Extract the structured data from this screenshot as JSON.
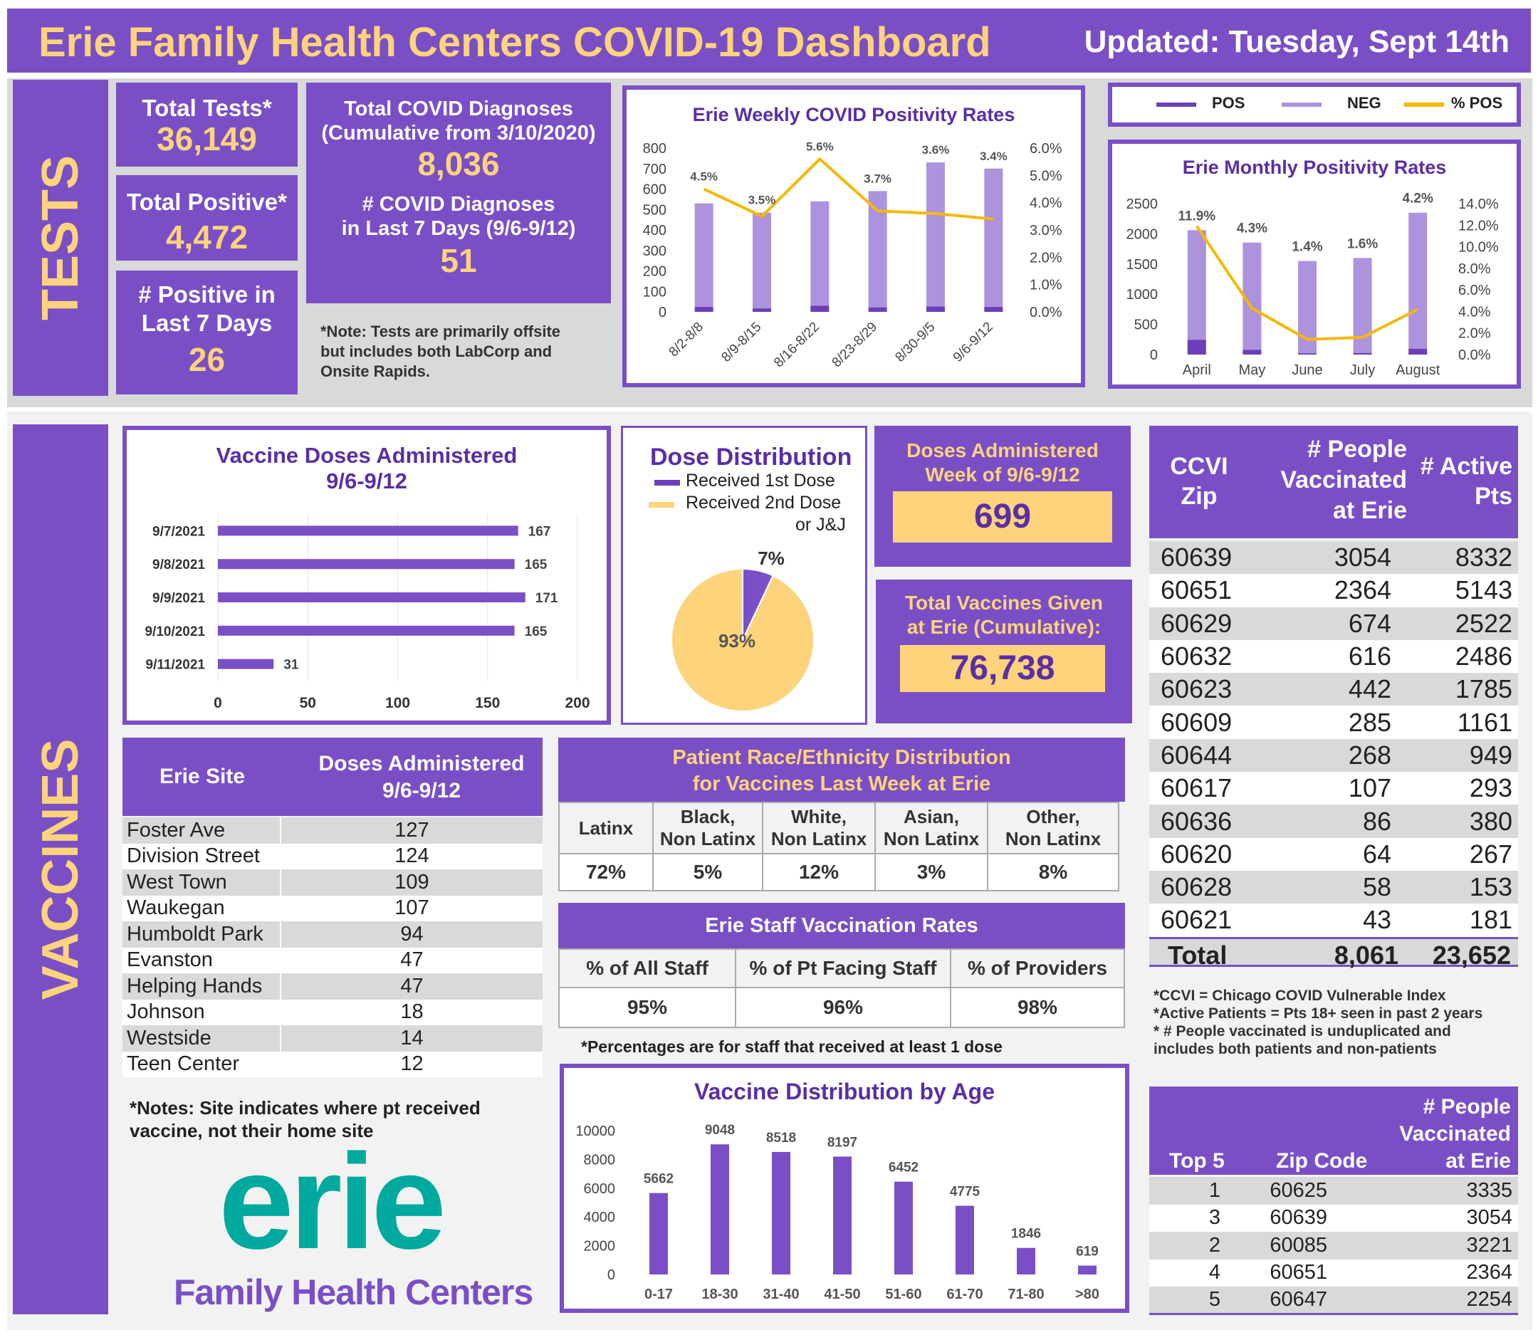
{
  "header": {
    "title": "Erie Family Health Centers COVID-19 Dashboard",
    "updated": "Updated: Tuesday, Sept 14th"
  },
  "tests": {
    "section_label": "TESTS",
    "total_tests_label": "Total Tests*",
    "total_tests": "36,149",
    "total_positive_label": "Total Positive*",
    "total_positive": "4,472",
    "positive_7_label_1": "# Positive in",
    "positive_7_label_2": "Last 7 Days",
    "positive_7": "26",
    "diagnoses_label_1": "Total COVID Diagnoses",
    "diagnoses_label_2": "(Cumulative from 3/10/2020)",
    "diagnoses": "8,036",
    "diag7_label_1": "# COVID Diagnoses",
    "diag7_label_2": "in Last 7 Days (9/6-9/12)",
    "diag7": "51",
    "note_1": "*Note:  Tests are primarily offsite",
    "note_2": "but includes both LabCorp and",
    "note_3": "Onsite Rapids."
  },
  "legend": {
    "pos": "POS",
    "neg": "NEG",
    "pct": "% POS"
  },
  "colors": {
    "purple": "#7a4fc6",
    "dark_purple": "#6a3fb9",
    "light_purple": "#ad93dd",
    "gold": "#fdd37c",
    "line_gold": "#f5b800",
    "title_purple": "#5a2ea6"
  },
  "vaccines": {
    "section_label": "VACCINES",
    "dose_dist_title": "Dose Distribution",
    "dose_leg_1": "Received 1st  Dose",
    "dose_leg_2a": "Received 2nd Dose",
    "dose_leg_2b": "or J&J",
    "week_label_1": "Doses Administered",
    "week_label_2": "Week of 9/6-9/12",
    "week_value": "699",
    "total_label_1": "Total Vaccines Given",
    "total_label_2": "at Erie (Cumulative):",
    "total_value": "76,738",
    "site_note_1": "*Notes: Site indicates where pt received",
    "site_note_2": "vaccine, not their home site",
    "staff_note": "*Percentages are for staff that received at least 1 dose",
    "ccvi_note_1": "*CCVI = Chicago COVID Vulnerable Index",
    "ccvi_note_2": "*Active Patients = Pts 18+ seen in past 2 years",
    "ccvi_note_3": "* # People vaccinated is unduplicated and",
    "ccvi_note_4": "includes both patients and non-patients"
  },
  "site_table": {
    "h1": "Erie Site",
    "h2a": "Doses Administered",
    "h2b": "9/6-9/12",
    "rows": [
      {
        "site": "Foster Ave",
        "doses": "127"
      },
      {
        "site": "Division Street",
        "doses": "124"
      },
      {
        "site": "West Town",
        "doses": "109"
      },
      {
        "site": "Waukegan",
        "doses": "107"
      },
      {
        "site": "Humboldt Park",
        "doses": "94"
      },
      {
        "site": "Evanston",
        "doses": "47"
      },
      {
        "site": "Helping Hands",
        "doses": "47"
      },
      {
        "site": "Johnson",
        "doses": "18"
      },
      {
        "site": "Westside",
        "doses": "14"
      },
      {
        "site": "Teen Center",
        "doses": "12"
      }
    ]
  },
  "race": {
    "title_1": "Patient Race/Ethnicity Distribution",
    "title_2": "for Vaccines Last Week at Erie",
    "headers": [
      [
        "Latinx",
        ""
      ],
      [
        "Black,",
        "Non Latinx"
      ],
      [
        "White,",
        "Non Latinx"
      ],
      [
        "Asian,",
        "Non Latinx"
      ],
      [
        "Other,",
        "Non Latinx"
      ]
    ],
    "values": [
      "72%",
      "5%",
      "12%",
      "3%",
      "8%"
    ]
  },
  "staff": {
    "title": "Erie Staff Vaccination Rates",
    "headers": [
      "% of All Staff",
      "% of Pt Facing Staff",
      "% of Providers"
    ],
    "values": [
      "95%",
      "96%",
      "98%"
    ]
  },
  "zip_table": {
    "h1a": "CCVI",
    "h1b": "Zip",
    "h2a": "# People",
    "h2b": "Vaccinated",
    "h2c": "at Erie",
    "h3a": "# Active",
    "h3b": "Pts",
    "rows": [
      {
        "zip": "60639",
        "vacc": "3054",
        "active": "8332"
      },
      {
        "zip": "60651",
        "vacc": "2364",
        "active": "5143"
      },
      {
        "zip": "60629",
        "vacc": "674",
        "active": "2522"
      },
      {
        "zip": "60632",
        "vacc": "616",
        "active": "2486"
      },
      {
        "zip": "60623",
        "vacc": "442",
        "active": "1785"
      },
      {
        "zip": "60609",
        "vacc": "285",
        "active": "1161"
      },
      {
        "zip": "60644",
        "vacc": "268",
        "active": "949"
      },
      {
        "zip": "60617",
        "vacc": "107",
        "active": "293"
      },
      {
        "zip": "60636",
        "vacc": "86",
        "active": "380"
      },
      {
        "zip": "60620",
        "vacc": "64",
        "active": "267"
      },
      {
        "zip": "60628",
        "vacc": "58",
        "active": "153"
      },
      {
        "zip": "60621",
        "vacc": "43",
        "active": "181"
      }
    ],
    "total_label": "Total",
    "total_vacc": "8,061",
    "total_active": "23,652"
  },
  "top5": {
    "h1": "Top 5",
    "h2": "Zip Code",
    "h3a": "# People",
    "h3b": "Vaccinated",
    "h3c": "at Erie",
    "rows": [
      {
        "rank": "1",
        "zip": "60625",
        "count": "3335"
      },
      {
        "rank": "3",
        "zip": "60639",
        "count": "3054"
      },
      {
        "rank": "2",
        "zip": "60085",
        "count": "3221"
      },
      {
        "rank": "4",
        "zip": "60651",
        "count": "2364"
      },
      {
        "rank": "5",
        "zip": "60647",
        "count": "2254"
      }
    ]
  },
  "logo": {
    "word": "erie",
    "sub": "Family Health Centers"
  },
  "chart_data": [
    {
      "id": "weekly",
      "type": "bar",
      "title": "Erie Weekly COVID Positivity Rates",
      "categories": [
        "8/2-8/8",
        "8/9-8/15",
        "8/16-8/22",
        "8/23-8/29",
        "8/30-9/5",
        "9/6-9/12"
      ],
      "series": [
        {
          "name": "POS",
          "values": [
            24,
            17,
            30,
            22,
            26,
            24
          ]
        },
        {
          "name": "NEG",
          "values": [
            506,
            468,
            510,
            568,
            704,
            676
          ]
        },
        {
          "name": "% POS",
          "values": [
            4.5,
            3.5,
            5.6,
            3.7,
            3.6,
            3.4
          ],
          "labels": [
            "4.5%",
            "3.5%",
            "5.6%",
            "3.7%",
            "3.6%",
            "3.4%"
          ]
        }
      ],
      "ylim": [
        0,
        800
      ],
      "yticks": [
        0,
        100,
        200,
        300,
        400,
        500,
        600,
        700,
        800
      ],
      "y2lim": [
        0,
        6
      ],
      "y2ticks": [
        "0.0%",
        "1.0%",
        "2.0%",
        "3.0%",
        "4.0%",
        "5.0%",
        "6.0%"
      ]
    },
    {
      "id": "monthly",
      "type": "bar",
      "title": "Erie Monthly Positivity Rates",
      "categories": [
        "April",
        "May",
        "June",
        "July",
        "August"
      ],
      "series": [
        {
          "name": "POS",
          "values": [
            245,
            80,
            22,
            26,
            98
          ]
        },
        {
          "name": "NEG",
          "values": [
            1815,
            1775,
            1528,
            1574,
            2252
          ]
        },
        {
          "name": "% POS",
          "values": [
            11.9,
            4.3,
            1.4,
            1.6,
            4.2
          ],
          "labels": [
            "11.9%",
            "4.3%",
            "1.4%",
            "1.6%",
            "4.2%"
          ]
        }
      ],
      "ylim": [
        0,
        2500
      ],
      "yticks": [
        0,
        500,
        1000,
        1500,
        2000,
        2500
      ],
      "y2lim": [
        0,
        14
      ],
      "y2ticks": [
        "0.0%",
        "2.0%",
        "4.0%",
        "6.0%",
        "8.0%",
        "10.0%",
        "12.0%",
        "14.0%"
      ]
    },
    {
      "id": "doses",
      "type": "bar",
      "orientation": "horizontal",
      "title": "Vaccine Doses Administered",
      "subtitle": "9/6-9/12",
      "categories": [
        "9/7/2021",
        "9/8/2021",
        "9/9/2021",
        "9/10/2021",
        "9/11/2021"
      ],
      "values": [
        167,
        165,
        171,
        165,
        31
      ],
      "xlim": [
        0,
        200
      ],
      "xticks": [
        0,
        50,
        100,
        150,
        200
      ]
    },
    {
      "id": "dosepie",
      "type": "pie",
      "labels": [
        "Received 1st  Dose",
        "Received 2nd Dose or J&J"
      ],
      "values": [
        7,
        93
      ],
      "value_labels": [
        "7%",
        "93%"
      ]
    },
    {
      "id": "age",
      "type": "bar",
      "title": "Vaccine Distribution by Age",
      "categories": [
        "0-17",
        "18-30",
        "31-40",
        "41-50",
        "51-60",
        "61-70",
        "71-80",
        ">80"
      ],
      "values": [
        5662,
        9048,
        8518,
        8197,
        6452,
        4775,
        1846,
        619
      ],
      "ylim": [
        0,
        10000
      ],
      "yticks": [
        0,
        2000,
        4000,
        6000,
        8000,
        10000
      ]
    }
  ]
}
